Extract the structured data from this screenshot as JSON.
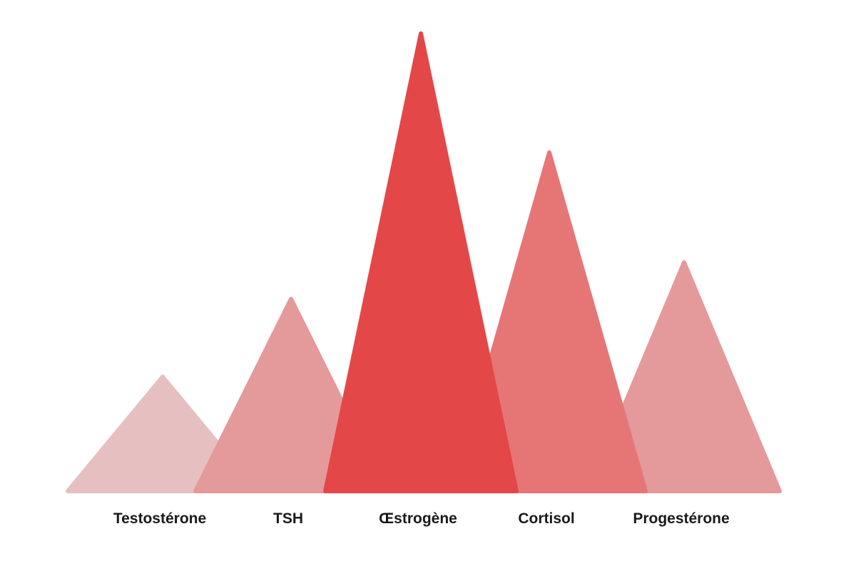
{
  "chart_data": {
    "type": "bar",
    "style": "triangle-peaks",
    "categories": [
      "Testostérone",
      "TSH",
      "Œstrogène",
      "Cortisol",
      "Progestérone"
    ],
    "values": [
      25,
      42,
      100,
      74,
      50
    ],
    "colors": [
      "#e6bfc0",
      "#e49a9a",
      "#e44747",
      "#e67676",
      "#e49a9a"
    ],
    "ylim": [
      0,
      100
    ],
    "title": "",
    "xlabel": "",
    "ylabel": "",
    "grid": false,
    "legend": "none"
  }
}
